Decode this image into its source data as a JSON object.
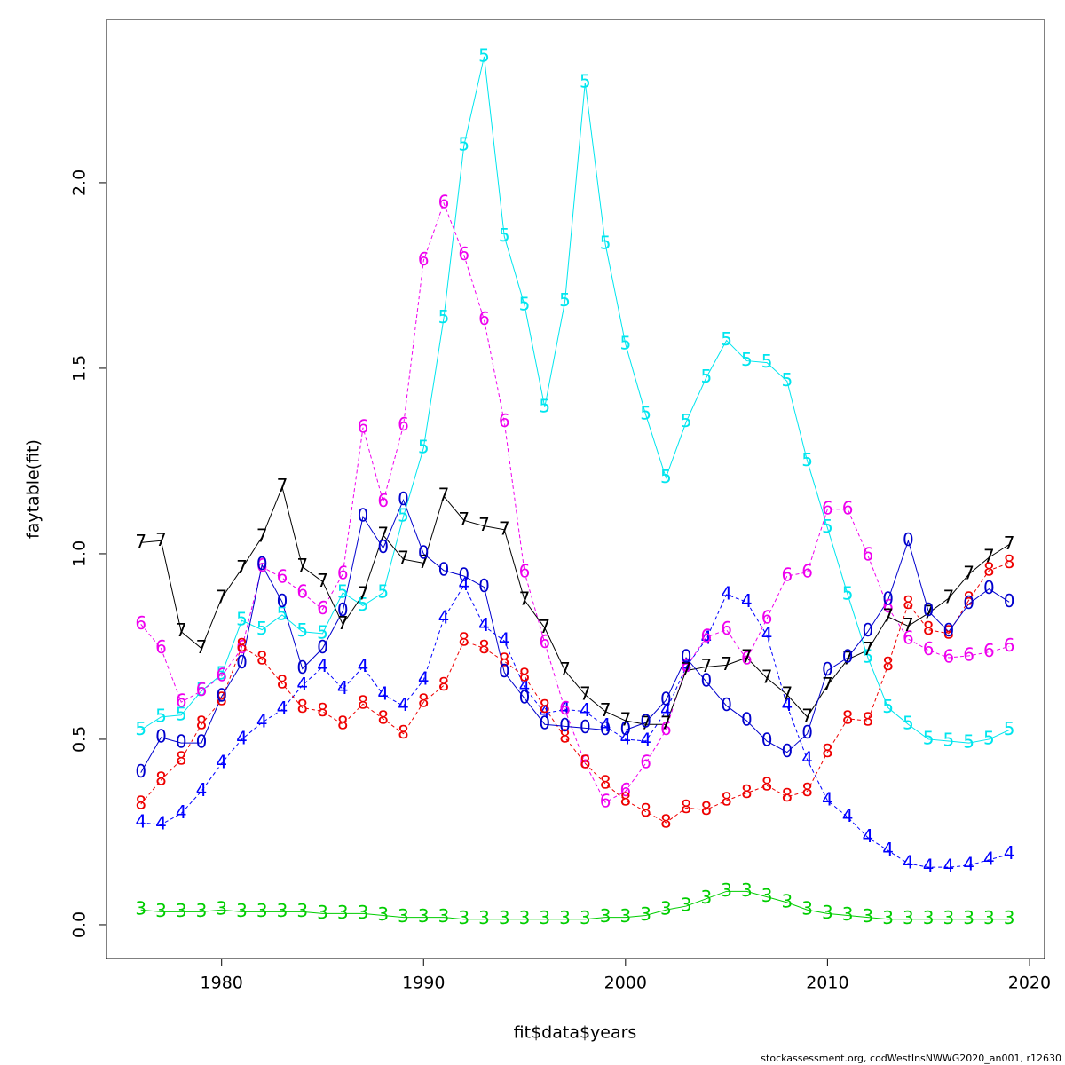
{
  "chart_data": {
    "type": "line",
    "xlabel": "fit$data$years",
    "ylabel": "faytable(fit)",
    "footer": "stockassessment.org, codWestInsNWWG2020_an001, r12630",
    "x": [
      1976,
      1977,
      1978,
      1979,
      1980,
      1981,
      1982,
      1983,
      1984,
      1985,
      1986,
      1987,
      1988,
      1989,
      1990,
      1991,
      1992,
      1993,
      1994,
      1995,
      1996,
      1997,
      1998,
      1999,
      2000,
      2001,
      2002,
      2003,
      2004,
      2005,
      2006,
      2007,
      2008,
      2009,
      2010,
      2011,
      2012,
      2013,
      2014,
      2015,
      2016,
      2017,
      2018,
      2019
    ],
    "xlim": [
      1974.3,
      2020.75
    ],
    "xticks": [
      1980,
      1990,
      2000,
      2010,
      2020
    ],
    "ylim": [
      -0.091,
      2.44
    ],
    "yticks": [
      {
        "value": 0,
        "label": "0.0"
      },
      0.5,
      {
        "value": 1,
        "label": "1.0"
      },
      1.5,
      {
        "value": 2,
        "label": "2.0"
      }
    ],
    "series": [
      {
        "name": "3",
        "color": "#00cd00",
        "values": [
          0.04,
          0.035,
          0.035,
          0.035,
          0.04,
          0.035,
          0.035,
          0.035,
          0.035,
          0.03,
          0.03,
          0.03,
          0.025,
          0.02,
          0.02,
          0.02,
          0.015,
          0.015,
          0.015,
          0.015,
          0.015,
          0.015,
          0.015,
          0.02,
          0.02,
          0.025,
          0.04,
          0.05,
          0.07,
          0.09,
          0.09,
          0.075,
          0.06,
          0.04,
          0.03,
          0.025,
          0.02,
          0.015,
          0.015,
          0.015,
          0.015,
          0.015,
          0.015,
          0.015
        ]
      },
      {
        "name": "4",
        "color": "#0000ff",
        "values": [
          0.275,
          0.27,
          0.3,
          0.36,
          0.435,
          0.5,
          0.545,
          0.58,
          0.645,
          0.695,
          0.635,
          0.695,
          0.62,
          0.59,
          0.66,
          0.825,
          0.915,
          0.805,
          0.765,
          0.64,
          0.57,
          0.58,
          0.575,
          0.535,
          0.5,
          0.495,
          0.575,
          0.695,
          0.77,
          0.89,
          0.87,
          0.78,
          0.59,
          0.445,
          0.335,
          0.29,
          0.235,
          0.2,
          0.165,
          0.155,
          0.155,
          0.16,
          0.175,
          0.19
        ]
      },
      {
        "name": "5",
        "color": "#00e5ee",
        "values": [
          0.525,
          0.56,
          0.565,
          0.63,
          0.675,
          0.82,
          0.795,
          0.835,
          0.79,
          0.785,
          0.895,
          0.86,
          0.895,
          1.1,
          1.285,
          1.635,
          2.1,
          2.34,
          1.855,
          1.67,
          1.395,
          1.68,
          2.27,
          1.835,
          1.565,
          1.375,
          1.205,
          1.355,
          1.475,
          1.575,
          1.52,
          1.515,
          1.465,
          1.25,
          1.07,
          0.89,
          0.72,
          0.585,
          0.54,
          0.5,
          0.495,
          0.49,
          0.5,
          0.525
        ]
      },
      {
        "name": "6",
        "color": "#ee00ee",
        "values": [
          0.81,
          0.745,
          0.6,
          0.63,
          0.67,
          0.745,
          0.965,
          0.935,
          0.895,
          0.85,
          0.945,
          1.34,
          1.14,
          1.345,
          1.79,
          1.945,
          1.805,
          1.63,
          1.355,
          0.95,
          0.76,
          0.58,
          0.435,
          0.33,
          0.36,
          0.435,
          0.525,
          0.695,
          0.775,
          0.795,
          0.715,
          0.825,
          0.94,
          0.95,
          1.12,
          1.12,
          0.995,
          0.855,
          0.77,
          0.74,
          0.72,
          0.725,
          0.735,
          0.75
        ]
      },
      {
        "name": "7",
        "color": "#000000",
        "values": [
          1.03,
          1.035,
          0.79,
          0.745,
          0.88,
          0.96,
          1.045,
          1.18,
          0.965,
          0.925,
          0.81,
          0.89,
          1.05,
          0.985,
          0.975,
          1.155,
          1.09,
          1.075,
          1.065,
          0.875,
          0.8,
          0.685,
          0.62,
          0.575,
          0.55,
          0.54,
          0.54,
          0.685,
          0.695,
          0.7,
          0.72,
          0.665,
          0.62,
          0.56,
          0.645,
          0.715,
          0.74,
          0.83,
          0.805,
          0.84,
          0.88,
          0.945,
          0.99,
          1.025
        ]
      },
      {
        "name": "8",
        "color": "#ee0000",
        "values": [
          0.325,
          0.39,
          0.445,
          0.54,
          0.605,
          0.75,
          0.715,
          0.65,
          0.585,
          0.575,
          0.54,
          0.595,
          0.555,
          0.515,
          0.6,
          0.645,
          0.765,
          0.745,
          0.71,
          0.67,
          0.585,
          0.505,
          0.435,
          0.38,
          0.335,
          0.305,
          0.275,
          0.315,
          0.31,
          0.335,
          0.355,
          0.375,
          0.345,
          0.36,
          0.465,
          0.555,
          0.55,
          0.7,
          0.865,
          0.795,
          0.785,
          0.875,
          0.955,
          0.975
        ]
      },
      {
        "name": "0",
        "color": "#0000cd",
        "values": [
          0.41,
          0.505,
          0.49,
          0.49,
          0.615,
          0.705,
          0.97,
          0.87,
          0.69,
          0.745,
          0.845,
          1.1,
          1.015,
          1.145,
          1.0,
          0.955,
          0.94,
          0.91,
          0.68,
          0.61,
          0.54,
          0.535,
          0.53,
          0.525,
          0.525,
          0.545,
          0.605,
          0.72,
          0.655,
          0.59,
          0.55,
          0.495,
          0.465,
          0.515,
          0.685,
          0.72,
          0.79,
          0.875,
          1.035,
          0.845,
          0.79,
          0.865,
          0.905,
          0.87
        ]
      }
    ]
  }
}
